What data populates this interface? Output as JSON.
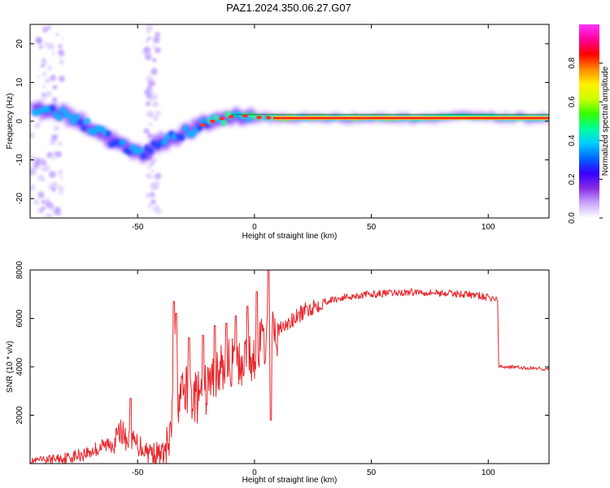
{
  "figure": {
    "title": "PAZ1.2024.350.06.27.G07"
  },
  "chart_data": [
    {
      "type": "heatmap",
      "xlabel": "Height of straight line (km)",
      "ylabel": "Frequency (Hz)",
      "xlim": [
        -96,
        126
      ],
      "ylim": [
        -25,
        25
      ],
      "x_ticks": [
        -50,
        0,
        50,
        100
      ],
      "y_ticks": [
        -20,
        -10,
        0,
        10,
        20
      ],
      "grid": false,
      "colorbar": {
        "label": "Normalized spectral amplitude",
        "ticks": [
          "0.0",
          "0.2",
          "0.4",
          "0.6",
          "0.8"
        ],
        "colors": [
          "#ffffff",
          "#c9a6ff",
          "#8a2be2",
          "#3300ff",
          "#0066ff",
          "#00ccff",
          "#00ff99",
          "#33ff00",
          "#ccff00",
          "#ffee00",
          "#ff8800",
          "#ff0000",
          "#ff0099",
          "#ff33ff"
        ]
      },
      "ridge": {
        "x": [
          -92,
          -85,
          -78,
          -70,
          -62,
          -55,
          -48,
          -42,
          -36,
          -30,
          -24,
          -18,
          -12,
          -6,
          0,
          10,
          30,
          50,
          70,
          90,
          110,
          126
        ],
        "y": [
          2.5,
          2.5,
          1,
          -1.5,
          -4.5,
          -7,
          -8.5,
          -6,
          -4.5,
          -3,
          -1.5,
          0,
          1,
          1.5,
          1,
          0.8,
          0.8,
          0.8,
          0.8,
          1.2,
          0.8,
          0.8
        ]
      }
    },
    {
      "type": "line",
      "xlabel": "Height of straight line (km)",
      "ylabel": "SNR (10 * v/v)",
      "xlim": [
        -96,
        126
      ],
      "ylim": [
        0,
        8000
      ],
      "x_ticks": [
        -50,
        0,
        50,
        100
      ],
      "y_ticks": [
        2000,
        4000,
        6000,
        8000
      ],
      "grid": false,
      "series": [
        {
          "color": "#e8252a",
          "x": [
            -96,
            -90,
            -85,
            -80,
            -75,
            -70,
            -65,
            -60,
            -57,
            -55,
            -50,
            -45,
            -40,
            -38,
            -36,
            -35,
            -34,
            -33,
            -32,
            -30,
            -28,
            -25,
            -22,
            -20,
            -18,
            -15,
            -12,
            -10,
            -8,
            -6,
            -5,
            -4,
            -3,
            -2,
            0,
            3,
            5,
            8,
            10,
            15,
            20,
            25,
            30,
            40,
            50,
            60,
            70,
            80,
            90,
            95,
            98,
            100,
            103,
            104,
            104.5,
            110,
            115,
            120,
            126
          ],
          "values": [
            100,
            150,
            200,
            250,
            350,
            500,
            700,
            900,
            1400,
            1000,
            800,
            500,
            350,
            500,
            800,
            2400,
            4500,
            3000,
            2600,
            3000,
            2900,
            2700,
            2800,
            3200,
            3500,
            3800,
            4000,
            4200,
            4000,
            4100,
            4300,
            4500,
            4600,
            4200,
            4600,
            5000,
            5100,
            5300,
            5500,
            5800,
            6200,
            6500,
            6700,
            6900,
            7000,
            7050,
            7100,
            7050,
            7000,
            6950,
            6900,
            6850,
            6800,
            6800,
            4000,
            4000,
            3950,
            3950,
            3900
          ],
          "spikes": [
            {
              "x": -53,
              "y": 2700
            },
            {
              "x": -34.5,
              "y": 6700
            },
            {
              "x": -33.5,
              "y": 6200
            },
            {
              "x": -28,
              "y": 5200
            },
            {
              "x": -22,
              "y": 5300
            },
            {
              "x": -17,
              "y": 5700
            },
            {
              "x": -12,
              "y": 5800
            },
            {
              "x": -8,
              "y": 6100
            },
            {
              "x": -3,
              "y": 6500
            },
            {
              "x": 1,
              "y": 7100
            },
            {
              "x": 6,
              "y": 8000
            },
            {
              "x": 7,
              "y": 1800
            }
          ]
        }
      ]
    }
  ]
}
